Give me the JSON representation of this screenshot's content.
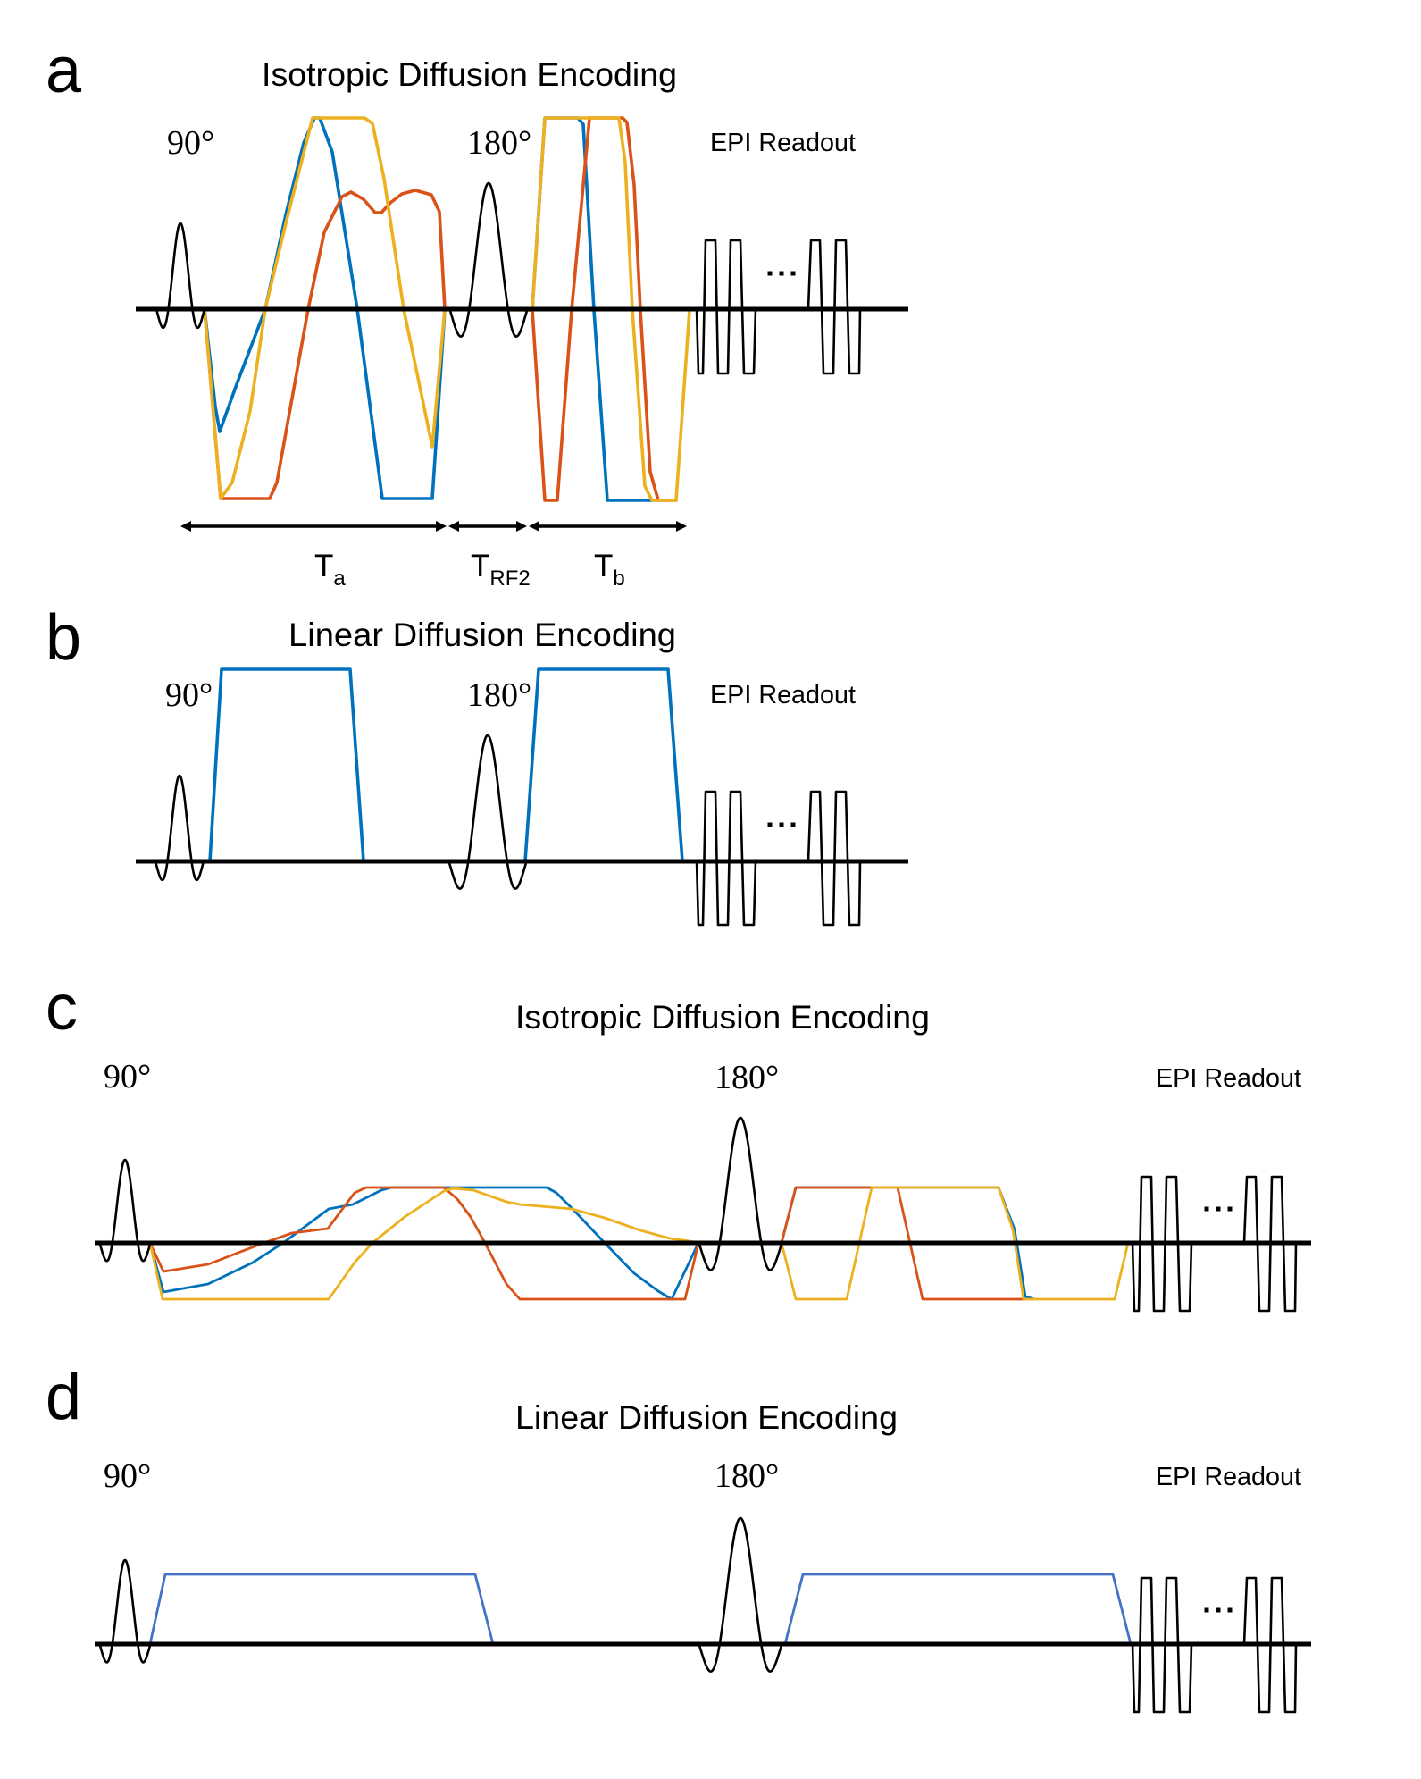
{
  "colors": {
    "gradient_x": "#0072BD",
    "gradient_y": "#D95319",
    "gradient_z": "#EDB120",
    "linear_gradient_d": "#4472C4",
    "rf_and_readout": "#000000"
  },
  "panels": [
    {
      "letter": "a",
      "title": "Isotropic Diffusion Encoding",
      "rf1": "90°",
      "rf2": "180°",
      "readout": "EPI Readout",
      "ellipsis": "...",
      "timing": [
        {
          "main": "T",
          "sub": "a"
        },
        {
          "main": "T",
          "sub": "RF2"
        },
        {
          "main": "T",
          "sub": "b"
        }
      ]
    },
    {
      "letter": "b",
      "title": "Linear Diffusion Encoding",
      "rf1": "90°",
      "rf2": "180°",
      "readout": "EPI Readout",
      "ellipsis": "..."
    },
    {
      "letter": "c",
      "title": "Isotropic Diffusion Encoding",
      "rf1": "90°",
      "rf2": "180°",
      "readout": "EPI Readout",
      "ellipsis": "..."
    },
    {
      "letter": "d",
      "title": "Linear Diffusion Encoding",
      "rf1": "90°",
      "rf2": "180°",
      "readout": "EPI Readout",
      "ellipsis": "..."
    }
  ]
}
